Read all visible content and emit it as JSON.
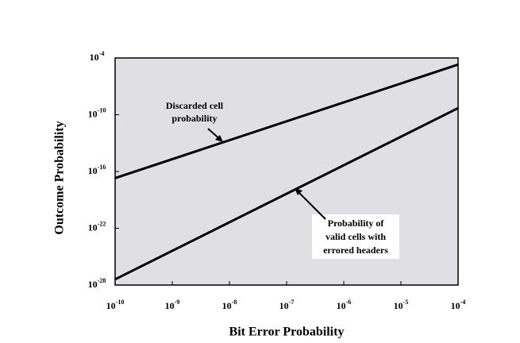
{
  "chart_data": {
    "type": "line",
    "xlabel": "Bit Error Probability",
    "ylabel": "Outcome Probability",
    "log_x": true,
    "log_y": true,
    "xlim": [
      1e-10,
      0.0001
    ],
    "ylim": [
      1e-28,
      0.0001
    ],
    "xticks": [
      {
        "value": 1e-10,
        "label": "10-10"
      },
      {
        "value": 1e-09,
        "label": "10-9"
      },
      {
        "value": 1e-08,
        "label": "10-8"
      },
      {
        "value": 1e-07,
        "label": "10-7"
      },
      {
        "value": 1e-06,
        "label": "10-6"
      },
      {
        "value": 1e-05,
        "label": "10-5"
      },
      {
        "value": 0.0001,
        "label": "10-4"
      }
    ],
    "yticks": [
      {
        "value": 1e-28,
        "label": "10-28"
      },
      {
        "value": 1e-22,
        "label": "10-22"
      },
      {
        "value": 1e-16,
        "label": "10-16"
      },
      {
        "value": 1e-10,
        "label": "10-10"
      },
      {
        "value": 0.0001,
        "label": "10-4"
      }
    ],
    "plot_background": "#e0dfe3",
    "series": [
      {
        "color": "#000000",
        "x": [
          1e-10,
          0.0001
        ],
        "values": [
          2e-17,
          2e-05
        ]
      },
      {
        "color": "#000000",
        "x": [
          1e-10,
          0.0001
        ],
        "values": [
          4e-28,
          5e-10
        ]
      }
    ],
    "annotations": [
      {
        "lines": [
          "Discarded cell",
          "probability"
        ]
      },
      {
        "lines": [
          "Probability of",
          "valid cells with",
          "errored headers"
        ]
      }
    ]
  }
}
